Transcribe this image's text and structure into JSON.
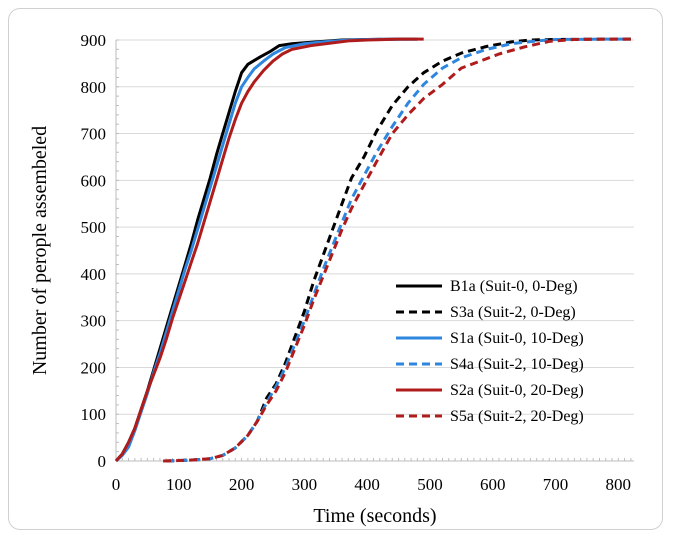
{
  "chart_data": {
    "type": "line",
    "title": "",
    "xlabel": "Time (seconds)",
    "ylabel": "Number of perople assembeled",
    "xlim": [
      0,
      825
    ],
    "ylim": [
      0,
      900
    ],
    "xticks": [
      0,
      100,
      200,
      300,
      400,
      500,
      600,
      700,
      800
    ],
    "yticks": [
      0,
      100,
      200,
      300,
      400,
      500,
      600,
      700,
      800,
      900
    ],
    "grid": "horizontal",
    "legend": "bottom-right",
    "series": [
      {
        "name": "B1a (Suit-0, 0-Deg)",
        "color": "#000000",
        "dash": "solid",
        "points": [
          [
            0,
            0
          ],
          [
            10,
            15
          ],
          [
            20,
            40
          ],
          [
            30,
            70
          ],
          [
            40,
            110
          ],
          [
            50,
            150
          ],
          [
            60,
            195
          ],
          [
            70,
            240
          ],
          [
            80,
            285
          ],
          [
            90,
            330
          ],
          [
            100,
            375
          ],
          [
            110,
            420
          ],
          [
            120,
            465
          ],
          [
            130,
            515
          ],
          [
            140,
            560
          ],
          [
            150,
            605
          ],
          [
            160,
            655
          ],
          [
            170,
            700
          ],
          [
            180,
            745
          ],
          [
            190,
            790
          ],
          [
            200,
            830
          ],
          [
            210,
            848
          ],
          [
            220,
            856
          ],
          [
            230,
            864
          ],
          [
            245,
            875
          ],
          [
            260,
            888
          ],
          [
            280,
            892
          ],
          [
            300,
            894
          ],
          [
            330,
            897
          ],
          [
            360,
            900
          ],
          [
            400,
            901
          ],
          [
            450,
            902
          ],
          [
            480,
            902
          ]
        ]
      },
      {
        "name": "S3a (Suit-2, 0-Deg)",
        "color": "#000000",
        "dash": "dashed",
        "points": [
          [
            80,
            0
          ],
          [
            120,
            2
          ],
          [
            150,
            5
          ],
          [
            170,
            12
          ],
          [
            190,
            28
          ],
          [
            210,
            55
          ],
          [
            225,
            85
          ],
          [
            240,
            135
          ],
          [
            255,
            165
          ],
          [
            270,
            210
          ],
          [
            285,
            265
          ],
          [
            300,
            320
          ],
          [
            315,
            385
          ],
          [
            330,
            440
          ],
          [
            345,
            495
          ],
          [
            360,
            550
          ],
          [
            375,
            605
          ],
          [
            395,
            650
          ],
          [
            415,
            705
          ],
          [
            440,
            760
          ],
          [
            465,
            800
          ],
          [
            490,
            830
          ],
          [
            520,
            855
          ],
          [
            550,
            872
          ],
          [
            590,
            886
          ],
          [
            630,
            896
          ],
          [
            660,
            900
          ],
          [
            700,
            901
          ],
          [
            780,
            902
          ],
          [
            820,
            902
          ]
        ]
      },
      {
        "name": "S1a (Suit-0, 10-Deg)",
        "color": "#2e86de",
        "dash": "solid",
        "points": [
          [
            0,
            0
          ],
          [
            10,
            12
          ],
          [
            20,
            30
          ],
          [
            30,
            65
          ],
          [
            40,
            105
          ],
          [
            50,
            145
          ],
          [
            60,
            190
          ],
          [
            70,
            230
          ],
          [
            80,
            275
          ],
          [
            90,
            320
          ],
          [
            100,
            365
          ],
          [
            110,
            410
          ],
          [
            120,
            450
          ],
          [
            130,
            495
          ],
          [
            140,
            540
          ],
          [
            150,
            585
          ],
          [
            160,
            630
          ],
          [
            170,
            675
          ],
          [
            180,
            720
          ],
          [
            190,
            765
          ],
          [
            200,
            800
          ],
          [
            210,
            820
          ],
          [
            220,
            838
          ],
          [
            235,
            855
          ],
          [
            250,
            870
          ],
          [
            270,
            884
          ],
          [
            300,
            892
          ],
          [
            330,
            896
          ],
          [
            360,
            899
          ],
          [
            400,
            901
          ],
          [
            480,
            902
          ]
        ]
      },
      {
        "name": "S4a (Suit-2, 10-Deg)",
        "color": "#2e86de",
        "dash": "dashed",
        "points": [
          [
            80,
            0
          ],
          [
            120,
            2
          ],
          [
            150,
            5
          ],
          [
            170,
            12
          ],
          [
            190,
            28
          ],
          [
            210,
            55
          ],
          [
            225,
            85
          ],
          [
            240,
            125
          ],
          [
            255,
            160
          ],
          [
            270,
            200
          ],
          [
            285,
            250
          ],
          [
            300,
            300
          ],
          [
            315,
            355
          ],
          [
            330,
            410
          ],
          [
            345,
            460
          ],
          [
            360,
            510
          ],
          [
            375,
            560
          ],
          [
            395,
            610
          ],
          [
            415,
            660
          ],
          [
            440,
            715
          ],
          [
            465,
            765
          ],
          [
            490,
            805
          ],
          [
            520,
            840
          ],
          [
            550,
            862
          ],
          [
            590,
            880
          ],
          [
            630,
            892
          ],
          [
            670,
            898
          ],
          [
            700,
            901
          ],
          [
            780,
            902
          ],
          [
            820,
            902
          ]
        ]
      },
      {
        "name": "S2a (Suit-0, 20-Deg)",
        "color": "#b01c1c",
        "dash": "solid",
        "points": [
          [
            0,
            0
          ],
          [
            10,
            15
          ],
          [
            20,
            40
          ],
          [
            30,
            70
          ],
          [
            40,
            110
          ],
          [
            50,
            150
          ],
          [
            60,
            185
          ],
          [
            70,
            220
          ],
          [
            80,
            260
          ],
          [
            90,
            305
          ],
          [
            100,
            345
          ],
          [
            110,
            385
          ],
          [
            120,
            425
          ],
          [
            130,
            465
          ],
          [
            140,
            510
          ],
          [
            150,
            555
          ],
          [
            160,
            600
          ],
          [
            170,
            645
          ],
          [
            180,
            690
          ],
          [
            190,
            730
          ],
          [
            200,
            765
          ],
          [
            210,
            790
          ],
          [
            220,
            810
          ],
          [
            235,
            835
          ],
          [
            250,
            855
          ],
          [
            265,
            870
          ],
          [
            280,
            880
          ],
          [
            310,
            888
          ],
          [
            340,
            893
          ],
          [
            370,
            898
          ],
          [
            400,
            900
          ],
          [
            450,
            902
          ],
          [
            490,
            902
          ]
        ]
      },
      {
        "name": "S5a (Suit-2, 20-Deg)",
        "color": "#b01c1c",
        "dash": "dashed",
        "points": [
          [
            75,
            0
          ],
          [
            120,
            2
          ],
          [
            150,
            5
          ],
          [
            170,
            12
          ],
          [
            190,
            28
          ],
          [
            210,
            55
          ],
          [
            225,
            85
          ],
          [
            240,
            120
          ],
          [
            255,
            150
          ],
          [
            270,
            190
          ],
          [
            285,
            240
          ],
          [
            300,
            290
          ],
          [
            315,
            345
          ],
          [
            330,
            395
          ],
          [
            345,
            445
          ],
          [
            360,
            495
          ],
          [
            375,
            540
          ],
          [
            395,
            590
          ],
          [
            415,
            640
          ],
          [
            440,
            700
          ],
          [
            465,
            740
          ],
          [
            490,
            775
          ],
          [
            520,
            805
          ],
          [
            550,
            840
          ],
          [
            580,
            855
          ],
          [
            610,
            870
          ],
          [
            650,
            885
          ],
          [
            690,
            897
          ],
          [
            730,
            901
          ],
          [
            780,
            902
          ],
          [
            820,
            902
          ]
        ]
      }
    ]
  }
}
